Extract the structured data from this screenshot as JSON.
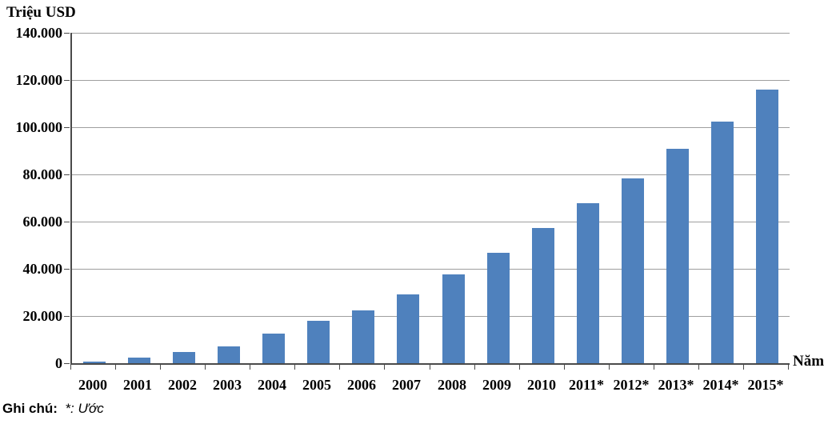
{
  "chart_data": {
    "type": "bar",
    "title": "",
    "y_axis_title": "Triệu USD",
    "x_axis_title": "Năm",
    "unit": "Triệu USD",
    "categories": [
      "2000",
      "2001",
      "2002",
      "2003",
      "2004",
      "2005",
      "2006",
      "2007",
      "2008",
      "2009",
      "2010",
      "2011*",
      "2012*",
      "2013*",
      "2014*",
      "2015*"
    ],
    "values": [
      700,
      2400,
      4900,
      7100,
      12500,
      17800,
      22400,
      29200,
      37600,
      46800,
      57300,
      67800,
      78300,
      90800,
      102500,
      116000
    ],
    "ylim": [
      0,
      140000
    ],
    "y_tick_step": 20000,
    "y_tick_labels": [
      "0",
      "20.000",
      "40.000",
      "60.000",
      "80.000",
      "100.000",
      "120.000",
      "140.000"
    ],
    "bar_color": "#4F81BD",
    "grid": true,
    "legend": "none"
  },
  "note": {
    "label": "Ghi chú:",
    "text": "*: Ước"
  }
}
